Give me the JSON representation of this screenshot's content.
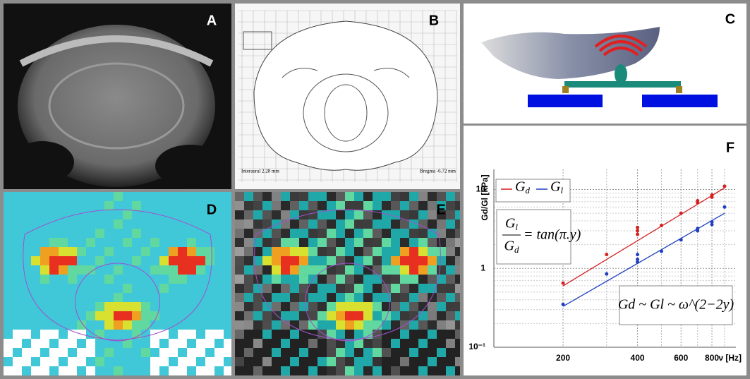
{
  "panels": {
    "a": "A",
    "b": "B",
    "c": "C",
    "d": "D",
    "e": "E"
  },
  "atlas": {
    "left": "Interaural 2.28 mm",
    "right": "Bregma -6.72 mm"
  },
  "chart_data": {
    "type": "scatter",
    "panel_label": "F",
    "xlabel": "ν [Hz]",
    "ylabel": "Gd/Gl [kPa]",
    "log_x": true,
    "log_y": true,
    "grid": true,
    "xlim": [
      105,
      1000
    ],
    "ylim": [
      0.1,
      18
    ],
    "xticks": [
      200,
      400,
      600,
      800
    ],
    "xminor": [
      300,
      500,
      700,
      900
    ],
    "yticks": [
      {
        "value": 0.1,
        "label": "10⁻¹"
      },
      1,
      10
    ],
    "yminor": [
      0.2,
      0.3,
      0.4,
      0.5,
      0.6,
      0.7,
      0.8,
      0.9,
      2,
      3,
      4,
      5,
      6,
      7,
      8,
      9
    ],
    "series": [
      {
        "name": "Gd",
        "color": "#d42020",
        "x": [
          200,
          300,
          400,
          400,
          400,
          500,
          600,
          700,
          700,
          800,
          800,
          900
        ],
        "values": [
          0.65,
          1.5,
          2.7,
          3.0,
          3.3,
          3.5,
          5.0,
          6.8,
          7.2,
          8.0,
          8.5,
          11
        ],
        "fit_x": [
          200,
          900
        ],
        "fit_values": [
          0.6,
          10.5
        ]
      },
      {
        "name": "Gl",
        "color": "#2040c0",
        "x": [
          200,
          300,
          400,
          400,
          400,
          500,
          600,
          700,
          700,
          800,
          800,
          900
        ],
        "values": [
          0.35,
          0.85,
          1.2,
          1.3,
          1.5,
          1.65,
          2.3,
          3.0,
          3.2,
          3.6,
          3.9,
          6.0
        ],
        "fit_x": [
          200,
          900
        ],
        "fit_values": [
          0.33,
          5.0
        ]
      }
    ],
    "annotations": [
      "Gl",
      "Gd",
      "= tan(π.y)",
      "Gd ~ Gl ~ ω^(2−2y)"
    ]
  }
}
